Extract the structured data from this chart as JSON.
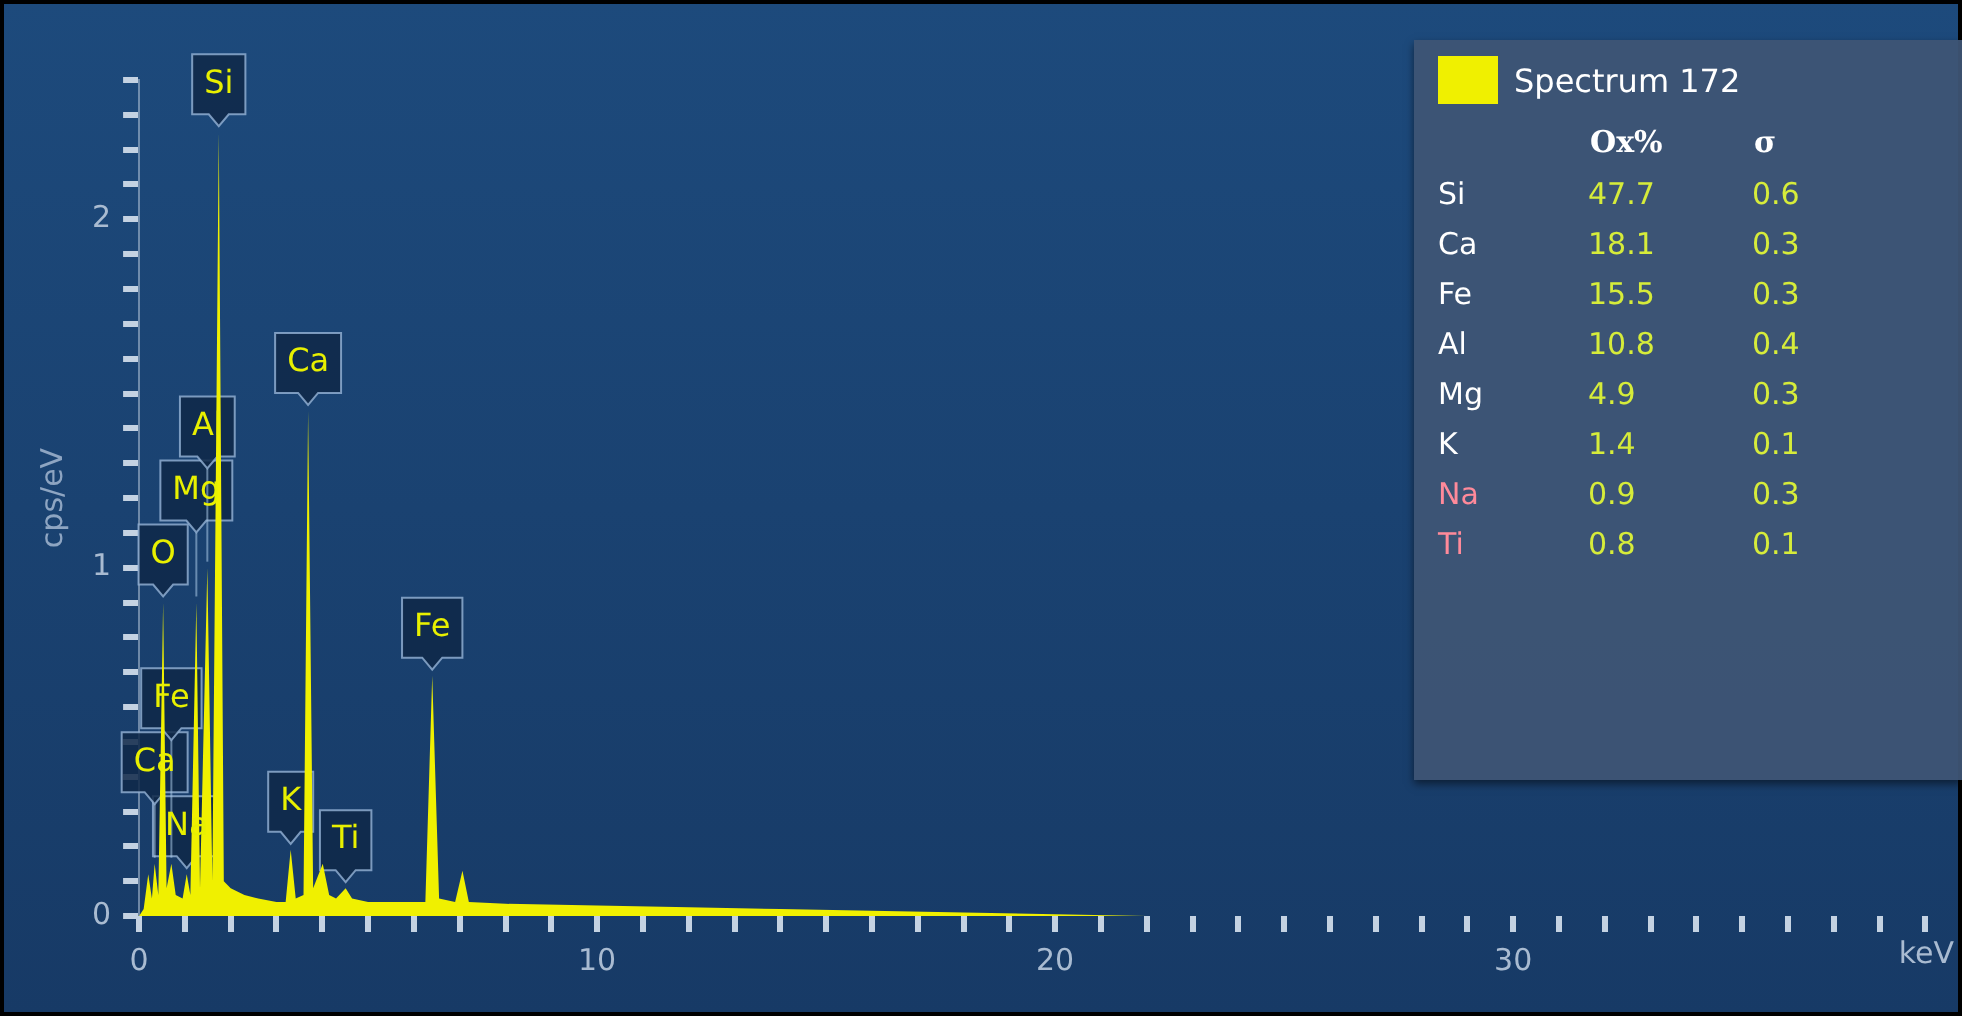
{
  "chart_data": [
    {
      "type": "area",
      "xlabel": "keV",
      "ylabel": "cps/eV",
      "xlim": [
        0,
        39.8
      ],
      "ylim": [
        0,
        2.4
      ],
      "xticks": [
        0,
        {
          "value": 1,
          "label": null
        },
        {
          "value": 2,
          "label": null
        },
        {
          "value": 3,
          "label": null
        },
        {
          "value": 4,
          "label": null
        },
        {
          "value": 5,
          "label": null
        },
        {
          "value": 6,
          "label": null
        },
        {
          "value": 7,
          "label": null
        },
        {
          "value": 8,
          "label": null
        },
        {
          "value": 9,
          "label": null
        },
        10,
        {
          "value": 11,
          "label": null
        },
        {
          "value": 12,
          "label": null
        },
        {
          "value": 13,
          "label": null
        },
        {
          "value": 14,
          "label": null
        },
        {
          "value": 15,
          "label": null
        },
        {
          "value": 16,
          "label": null
        },
        {
          "value": 17,
          "label": null
        },
        {
          "value": 18,
          "label": null
        },
        {
          "value": 19,
          "label": null
        },
        20,
        {
          "value": 21,
          "label": null
        },
        {
          "value": 22,
          "label": null
        },
        {
          "value": 23,
          "label": null
        },
        {
          "value": 24,
          "label": null
        },
        {
          "value": 25,
          "label": null
        },
        {
          "value": 26,
          "label": null
        },
        {
          "value": 27,
          "label": null
        },
        {
          "value": 28,
          "label": null
        },
        {
          "value": 29,
          "label": null
        },
        30,
        {
          "value": 31,
          "label": null
        },
        {
          "value": 32,
          "label": null
        },
        {
          "value": 33,
          "label": null
        },
        {
          "value": 34,
          "label": null
        },
        {
          "value": 35,
          "label": null
        },
        {
          "value": 36,
          "label": null
        },
        {
          "value": 37,
          "label": null
        },
        {
          "value": 38,
          "label": null
        },
        {
          "value": 39,
          "label": null
        }
      ],
      "yticks": [
        0,
        {
          "value": 0.1,
          "label": null
        },
        {
          "value": 0.2,
          "label": null
        },
        {
          "value": 0.3,
          "label": null
        },
        {
          "value": 0.4,
          "label": null
        },
        {
          "value": 0.5,
          "label": null
        },
        {
          "value": 0.6,
          "label": null
        },
        {
          "value": 0.7,
          "label": null
        },
        {
          "value": 0.8,
          "label": null
        },
        {
          "value": 0.9,
          "label": null
        },
        1,
        {
          "value": 1.1,
          "label": null
        },
        {
          "value": 1.2,
          "label": null
        },
        {
          "value": 1.3,
          "label": null
        },
        {
          "value": 1.4,
          "label": null
        },
        {
          "value": 1.5,
          "label": null
        },
        {
          "value": 1.6,
          "label": null
        },
        {
          "value": 1.7,
          "label": null
        },
        {
          "value": 1.8,
          "label": null
        },
        {
          "value": 1.9,
          "label": null
        },
        2,
        {
          "value": 2.1,
          "label": null
        },
        {
          "value": 2.2,
          "label": null
        },
        {
          "value": 2.3,
          "label": null
        },
        {
          "value": 2.4,
          "label": null
        }
      ],
      "x": [
        0,
        0.1,
        0.2,
        0.28,
        0.34,
        0.42,
        0.525,
        0.6,
        0.705,
        0.8,
        0.95,
        1.04,
        1.12,
        1.25,
        1.33,
        1.49,
        1.6,
        1.74,
        1.85,
        2.0,
        2.3,
        2.6,
        3.0,
        3.2,
        3.31,
        3.42,
        3.59,
        3.69,
        3.8,
        4.01,
        4.15,
        4.3,
        4.51,
        4.65,
        5.0,
        5.5,
        6.0,
        6.25,
        6.4,
        6.55,
        6.9,
        7.06,
        7.2,
        8,
        10,
        12,
        14,
        16,
        18,
        20,
        22
      ],
      "series": [
        {
          "name": "Spectrum 172",
          "color": "#f0f000",
          "values": [
            0,
            0.02,
            0.12,
            0.05,
            0.15,
            0.06,
            0.9,
            0.08,
            0.15,
            0.06,
            0.05,
            0.12,
            0.06,
            0.9,
            0.08,
            1.0,
            0.1,
            2.25,
            0.1,
            0.08,
            0.06,
            0.05,
            0.04,
            0.04,
            0.19,
            0.05,
            0.06,
            1.45,
            0.08,
            0.15,
            0.06,
            0.05,
            0.08,
            0.05,
            0.04,
            0.04,
            0.04,
            0.04,
            0.69,
            0.05,
            0.04,
            0.13,
            0.04,
            0.035,
            0.03,
            0.025,
            0.02,
            0.015,
            0.01,
            0.005,
            0
          ]
        }
      ],
      "marker": "none",
      "annotations": [
        {
          "text": "Si",
          "x": 1.74,
          "y": 2.25
        },
        {
          "text": "O",
          "x": 0.525,
          "y": 0.9
        },
        {
          "text": "Ca",
          "x": 3.69,
          "y": 1.45
        },
        {
          "text": "Mg",
          "x": 1.25,
          "y": 0.9
        },
        {
          "text": "Al",
          "x": 1.49,
          "y": 1.0
        },
        {
          "text": "Fe",
          "x": 6.4,
          "y": 0.69
        },
        {
          "text": "Ca",
          "x": 0.34,
          "y": 0.15
        },
        {
          "text": "Fe",
          "x": 0.705,
          "y": 0.15
        },
        {
          "text": "K",
          "x": 3.31,
          "y": 0.19
        },
        {
          "text": "Na",
          "x": 1.04,
          "y": 0.12
        },
        {
          "text": "Ti",
          "x": 4.51,
          "y": 0.08
        }
      ]
    },
    {
      "type": "other",
      "categories": [
        "Si",
        "Ca",
        "Fe",
        "Al",
        "Mg",
        "K",
        "Na",
        "Ti"
      ],
      "colors": [
        "#ffffff",
        "#ffffff",
        "#ffffff",
        "#ffffff",
        "#ffffff",
        "#ffffff",
        "#ff8a9a",
        "#ff8a9a"
      ],
      "series": [
        {
          "name": "Ox%",
          "values": [
            47.7,
            18.1,
            15.5,
            10.8,
            4.9,
            1.4,
            0.9,
            0.8
          ]
        },
        {
          "name": "σ",
          "values": [
            0.6,
            0.3,
            0.3,
            0.4,
            0.3,
            0.1,
            0.3,
            0.1
          ]
        }
      ],
      "data_labels": true
    }
  ]
}
